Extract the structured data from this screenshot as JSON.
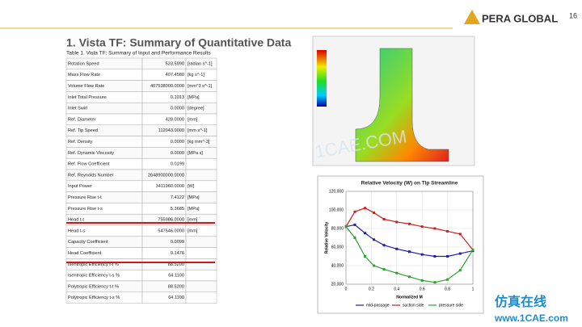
{
  "header": {
    "title": "1. Vista TF: Summary of Quantitative Data",
    "logo": "PERA GLOBAL",
    "page": "16"
  },
  "table": {
    "caption": "Table 1. Vista TF: Summary of Input and Performance Results",
    "rows": [
      [
        "Rotation Speed",
        "523.5990",
        "[radian s^-1]"
      ],
      [
        "Mass Flow Rate",
        "407.4580",
        "[kg s^-1]"
      ],
      [
        "Volume Flow Rate",
        "407538000.0000",
        "[mm^3 s^-1]"
      ],
      [
        "Inlet Total Pressure",
        "0.1013",
        "[MPa]"
      ],
      [
        "Inlet Swirl",
        "0.0000",
        "[degree]"
      ],
      [
        "Ref. Diameter",
        "428.0000",
        "[mm]"
      ],
      [
        "Ref. Tip Speed",
        "112043.0000",
        "[mm s^-1]"
      ],
      [
        "Ref. Density",
        "0.0000",
        "[kg mm^-3]"
      ],
      [
        "Ref. Dynamic Viscosity",
        "0.0000",
        "[MPa s]"
      ],
      [
        "Ref. Flow Coefficient",
        "0.0199"
      ],
      [
        "Ref. Reynolds Number",
        "2648900000.0000"
      ],
      [
        "Input Power",
        "3411960.0000",
        "[W]"
      ],
      [
        "Pressure Rise t-t",
        "7.4122",
        "[MPa]"
      ],
      [
        "Pressure Rise t-s",
        "5.3685",
        "[MPa]"
      ],
      [
        "Head t-t",
        "755986.0000",
        "[mm]"
      ],
      [
        "Head t-s",
        "547546.0000",
        "[mm]"
      ],
      [
        "Capacity Coefficient",
        "0.0099"
      ],
      [
        "Head Coefficient",
        "0.1476"
      ],
      [
        "Isentropic Efficiency t-t %",
        "88.5200"
      ],
      [
        "Isentropic Efficiency t-s %",
        "64.1100"
      ],
      [
        "Polytropic Efficiency t-t %",
        "88.5200"
      ],
      [
        "Polytropic Efficiency t-s %",
        "64.1100"
      ]
    ]
  },
  "watermark": {
    "text": "1CAE.COM",
    "brand": "仿真在线",
    "url": "www.1CAE.com"
  },
  "chart_data": {
    "type": "line",
    "title": "Relative Velocity (W) on Tip Streamline",
    "x_label": "Normalized M",
    "y_label": "Relative Velocity",
    "x": [
      0,
      0.07,
      0.15,
      0.22,
      0.3,
      0.4,
      0.5,
      0.6,
      0.7,
      0.8,
      0.9,
      1.0
    ],
    "series": [
      {
        "name": "mid-passage",
        "color": "#1f1fa8",
        "values": [
          82000,
          84000,
          75000,
          68000,
          62000,
          58000,
          55000,
          52000,
          50000,
          50000,
          53000,
          56000
        ]
      },
      {
        "name": "suction side",
        "color": "#cc1f1f",
        "values": [
          82000,
          98000,
          102000,
          97000,
          90000,
          87000,
          85000,
          82000,
          80000,
          77000,
          74000,
          57000
        ]
      },
      {
        "name": "pressure side",
        "color": "#2ea02e",
        "values": [
          82000,
          70000,
          50000,
          40000,
          36000,
          32000,
          28000,
          24000,
          22000,
          25000,
          35000,
          57000
        ]
      }
    ],
    "xlim": [
      0,
      1
    ],
    "ylim": [
      20000,
      120000
    ],
    "xticks": [
      0,
      0.2,
      0.4,
      0.6,
      0.8,
      1
    ],
    "yticks": [
      {
        "value": 20000,
        "label": "20,000"
      },
      {
        "value": 40000,
        "label": "40,000"
      },
      {
        "value": 60000,
        "label": "60,000"
      },
      {
        "value": 80000,
        "label": "80,000"
      },
      {
        "value": 100000,
        "label": "100,000"
      },
      {
        "value": 120000,
        "label": "120,000"
      }
    ],
    "grid": true
  }
}
